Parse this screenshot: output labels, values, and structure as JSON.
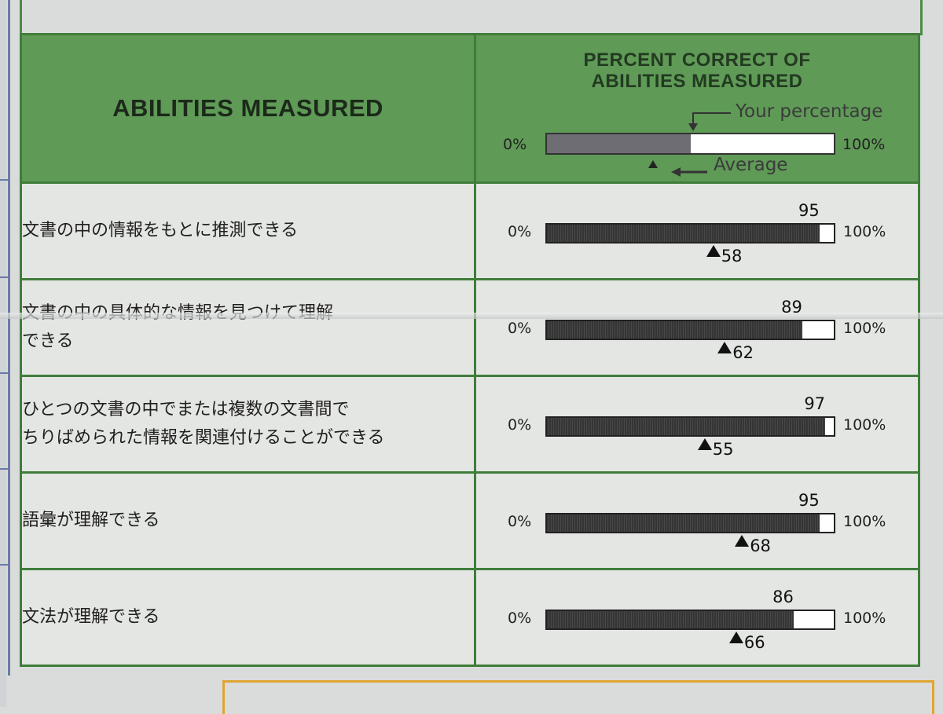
{
  "header": {
    "abilities_label": "ABILITIES MEASURED",
    "percent_title_line1": "PERCENT CORRECT OF",
    "percent_title_line2": "ABILITIES MEASURED",
    "legend": {
      "zero_label": "0%",
      "hundred_label": "100%",
      "your_percentage_label": "Your percentage",
      "average_label": "Average",
      "example_fill_fraction": 0.5,
      "example_average_fraction": 0.36
    }
  },
  "rows": [
    {
      "ability_line1": "文書の中の情報をもとに推測できる",
      "ability_line2": "",
      "score": 95,
      "average": 58,
      "zero_label": "0%",
      "hundred_label": "100%"
    },
    {
      "ability_line1": "文書の中の具体的な情報を見つけて理解",
      "ability_line2": "できる",
      "score": 89,
      "average": 62,
      "zero_label": "0%",
      "hundred_label": "100%"
    },
    {
      "ability_line1": "ひとつの文書の中でまたは複数の文書間で",
      "ability_line2": "ちりばめられた情報を関連付けることができる",
      "score": 97,
      "average": 55,
      "zero_label": "0%",
      "hundred_label": "100%"
    },
    {
      "ability_line1": "語彙が理解できる",
      "ability_line2": "",
      "score": 95,
      "average": 68,
      "zero_label": "0%",
      "hundred_label": "100%"
    },
    {
      "ability_line1": "文法が理解できる",
      "ability_line2": "",
      "score": 86,
      "average": 66,
      "zero_label": "0%",
      "hundred_label": "100%"
    }
  ],
  "colors": {
    "header_green": "#5f9a57",
    "border_green": "#3f7d3a",
    "bar_fill": "#353535",
    "accent_orange": "#e0a531"
  }
}
